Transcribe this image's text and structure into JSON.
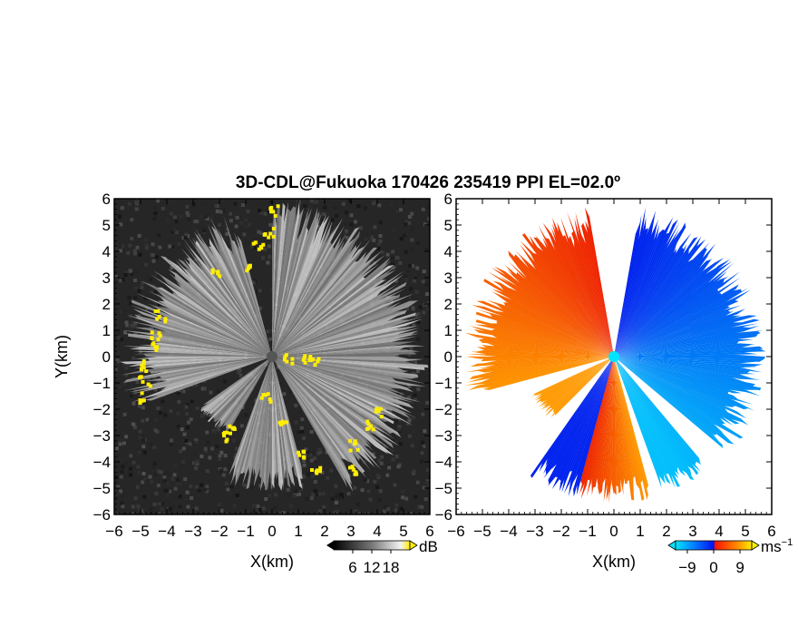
{
  "title": "3D-CDL@Fukuoka 170426 235419 PPI EL=02.0º",
  "colors": {
    "background_noise": "#2a2a2a",
    "echo_white": "#e8e8e8",
    "yellow": "#ffee00",
    "cyan": "#00e5ff",
    "blue": "#0022ee",
    "red": "#ee2200",
    "orange": "#ff9900"
  },
  "chart_data": [
    {
      "type": "heatmap",
      "panel": "left",
      "quantity": "reflectivity",
      "xlabel": "X(km)",
      "ylabel": "Y(km)",
      "xlim": [
        -6,
        6
      ],
      "ylim": [
        -6,
        6
      ],
      "xticks": [
        "−6",
        "−5",
        "−4",
        "−3",
        "−2",
        "−1",
        "0",
        "1",
        "2",
        "3",
        "4",
        "5",
        "6"
      ],
      "yticks": [
        "−6",
        "−5",
        "−4",
        "−3",
        "−2",
        "−1",
        "0",
        "1",
        "2",
        "3",
        "4",
        "5",
        "6"
      ],
      "colorbar": {
        "unit": "dB",
        "range": [
          0,
          24
        ],
        "ticks": [
          "6",
          "12",
          "18"
        ],
        "tick_values": [
          6,
          12,
          18
        ]
      },
      "echo_sectors_deg": [
        {
          "from": 0,
          "to": 150,
          "range_km": [
            4.5,
            6.0
          ]
        },
        {
          "from": 165,
          "to": 200,
          "range_km": [
            4.2,
            5.2
          ]
        },
        {
          "from": 210,
          "to": 235,
          "range_km": [
            3.0,
            3.5
          ]
        },
        {
          "from": 250,
          "to": 345,
          "range_km": [
            4.0,
            5.8
          ]
        }
      ],
      "yellow_edge_points_km": [
        [
          -4.3,
          1.6
        ],
        [
          -4.5,
          0.9
        ],
        [
          -4.6,
          0.4
        ],
        [
          -4.9,
          -0.3
        ],
        [
          -4.9,
          -0.9
        ],
        [
          -5.1,
          -1.5
        ],
        [
          -1.6,
          -2.7
        ],
        [
          -1.8,
          -3.0
        ],
        [
          -0.3,
          -1.5
        ],
        [
          0.4,
          -2.4
        ],
        [
          1.0,
          -3.6
        ],
        [
          1.6,
          -4.2
        ],
        [
          3.1,
          -4.3
        ],
        [
          3.0,
          -3.3
        ],
        [
          3.6,
          -2.5
        ],
        [
          4.0,
          -2.1
        ],
        [
          -1.0,
          3.5
        ],
        [
          -0.6,
          4.2
        ],
        [
          -0.2,
          4.8
        ],
        [
          0.0,
          5.6
        ],
        [
          -2.2,
          3.3
        ],
        [
          0.6,
          0.0
        ],
        [
          1.2,
          -0.1
        ],
        [
          1.5,
          -0.2
        ]
      ]
    },
    {
      "type": "heatmap",
      "panel": "right",
      "quantity": "Doppler velocity",
      "xlabel": "X(km)",
      "ylabel": "",
      "xlim": [
        -6,
        6
      ],
      "ylim": [
        -6,
        6
      ],
      "xticks": [
        "−6",
        "−5",
        "−4",
        "−3",
        "−2",
        "−1",
        "0",
        "1",
        "2",
        "3",
        "4",
        "5",
        "6"
      ],
      "yticks": [
        "−6",
        "−5",
        "−4",
        "−3",
        "−2",
        "−1",
        "0",
        "1",
        "2",
        "3",
        "4",
        "5",
        "6"
      ],
      "colorbar": {
        "unit": "ms",
        "unit_exponent": "−1",
        "range": [
          -13,
          13
        ],
        "ticks": [
          "−9",
          "0",
          "9"
        ],
        "tick_values": [
          -9,
          0,
          9
        ]
      },
      "velocity_sectors_deg": [
        {
          "from": 10,
          "to": 130,
          "range_km": [
            4.5,
            5.8
          ],
          "sign": "approaching"
        },
        {
          "from": 140,
          "to": 160,
          "range_km": [
            4.8,
            5.6
          ],
          "sign": "approaching"
        },
        {
          "from": 165,
          "to": 215,
          "range_km": [
            4.6,
            5.6
          ],
          "sign": "mixed"
        },
        {
          "from": 225,
          "to": 245,
          "range_km": [
            3.0,
            3.5
          ],
          "sign": "receding"
        },
        {
          "from": 255,
          "to": 350,
          "range_km": [
            4.4,
            5.8
          ],
          "sign": "receding"
        }
      ]
    }
  ]
}
